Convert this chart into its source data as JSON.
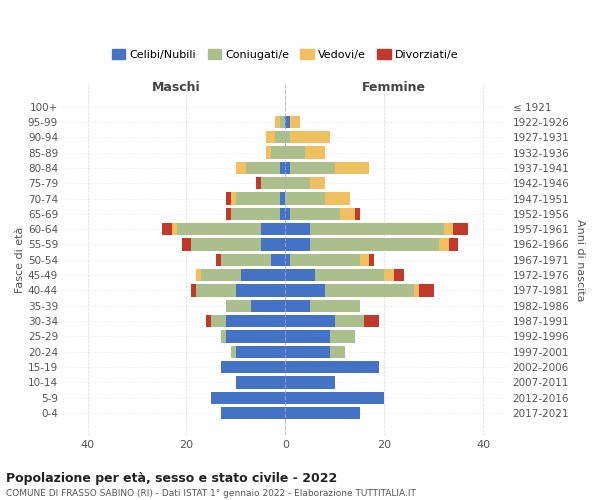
{
  "age_groups": [
    "0-4",
    "5-9",
    "10-14",
    "15-19",
    "20-24",
    "25-29",
    "30-34",
    "35-39",
    "40-44",
    "45-49",
    "50-54",
    "55-59",
    "60-64",
    "65-69",
    "70-74",
    "75-79",
    "80-84",
    "85-89",
    "90-94",
    "95-99",
    "100+"
  ],
  "birth_years": [
    "2017-2021",
    "2012-2016",
    "2007-2011",
    "2002-2006",
    "1997-2001",
    "1992-1996",
    "1987-1991",
    "1982-1986",
    "1977-1981",
    "1972-1976",
    "1967-1971",
    "1962-1966",
    "1957-1961",
    "1952-1956",
    "1947-1951",
    "1942-1946",
    "1937-1941",
    "1932-1936",
    "1927-1931",
    "1922-1926",
    "≤ 1921"
  ],
  "male": {
    "celibi": [
      13,
      15,
      10,
      13,
      10,
      12,
      12,
      7,
      10,
      9,
      3,
      5,
      5,
      1,
      1,
      0,
      1,
      0,
      0,
      0,
      0
    ],
    "coniugati": [
      0,
      0,
      0,
      0,
      1,
      1,
      3,
      5,
      8,
      8,
      10,
      14,
      17,
      10,
      9,
      5,
      7,
      3,
      2,
      1,
      0
    ],
    "vedovi": [
      0,
      0,
      0,
      0,
      0,
      0,
      0,
      0,
      0,
      1,
      0,
      0,
      1,
      0,
      1,
      0,
      2,
      1,
      2,
      1,
      0
    ],
    "divorziati": [
      0,
      0,
      0,
      0,
      0,
      0,
      1,
      0,
      1,
      0,
      1,
      2,
      2,
      1,
      1,
      1,
      0,
      0,
      0,
      0,
      0
    ]
  },
  "female": {
    "nubili": [
      15,
      20,
      10,
      19,
      9,
      9,
      10,
      5,
      8,
      6,
      1,
      5,
      5,
      1,
      0,
      0,
      1,
      0,
      0,
      1,
      0
    ],
    "coniugate": [
      0,
      0,
      0,
      0,
      3,
      5,
      6,
      10,
      18,
      14,
      14,
      26,
      27,
      10,
      8,
      5,
      9,
      4,
      1,
      0,
      0
    ],
    "vedove": [
      0,
      0,
      0,
      0,
      0,
      0,
      0,
      0,
      1,
      2,
      2,
      2,
      2,
      3,
      5,
      3,
      7,
      4,
      8,
      2,
      0
    ],
    "divorziate": [
      0,
      0,
      0,
      0,
      0,
      0,
      3,
      0,
      3,
      2,
      1,
      2,
      3,
      1,
      0,
      0,
      0,
      0,
      0,
      0,
      0
    ]
  },
  "colors": {
    "celibi": "#4472C4",
    "coniugati": "#AABF8B",
    "vedovi": "#F0C060",
    "divorziati": "#C0392B"
  },
  "title1": "Popolazione per età, sesso e stato civile - 2022",
  "title2": "COMUNE DI FRASSO SABINO (RI) - Dati ISTAT 1° gennaio 2022 - Elaborazione TUTTITALIA.IT",
  "xlabel_left": "Maschi",
  "xlabel_right": "Femmine",
  "ylabel_left": "Fasce di età",
  "ylabel_right": "Anni di nascita",
  "xlim": 45,
  "legend_labels": [
    "Celibi/Nubili",
    "Coniugati/e",
    "Vedovi/e",
    "Divorziati/e"
  ],
  "background_color": "#ffffff",
  "grid_color": "#cccccc"
}
